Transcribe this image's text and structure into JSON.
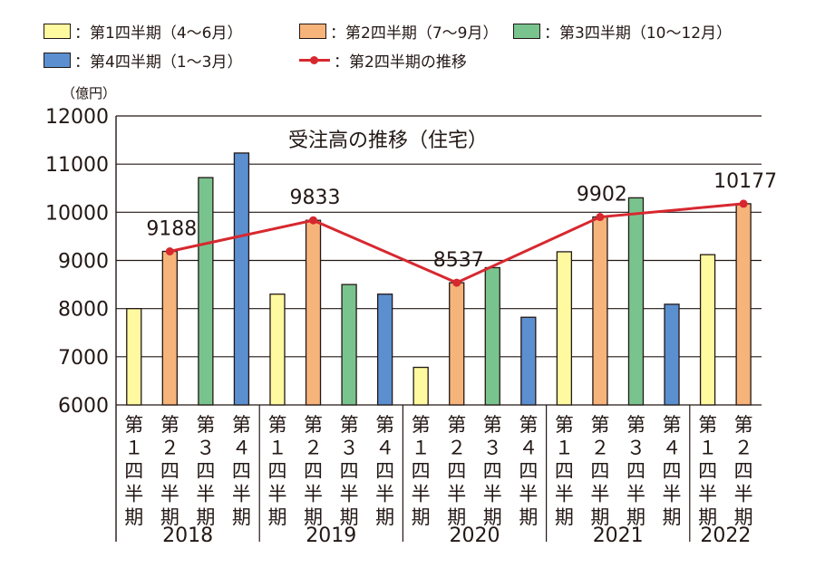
{
  "legend": [
    {
      "name": "：第1四半期（4〜6月）",
      "color": "#fffaa0",
      "kind": "bar"
    },
    {
      "name": "：第2四半期（7〜9月）",
      "color": "#f6b47b",
      "kind": "bar"
    },
    {
      "name": "：第3四半期（10〜12月）",
      "color": "#79c38f",
      "kind": "bar"
    },
    {
      "name": "：第4四半期（1〜3月）",
      "color": "#5b8fd0",
      "kind": "bar"
    },
    {
      "name": "：第2四半期の推移",
      "color": "#d7282f",
      "kind": "line"
    }
  ],
  "chart_data": {
    "type": "bar",
    "title": "受注高の推移（住宅）",
    "ylabel": "（億円）",
    "ylim": [
      6000,
      12000
    ],
    "yticks": [
      6000,
      7000,
      8000,
      9000,
      10000,
      11000,
      12000
    ],
    "grid": true,
    "legend_position": "top",
    "quarter_labels": [
      "第１四半期",
      "第２四半期",
      "第３四半期",
      "第４四半期"
    ],
    "years": [
      {
        "year": "2018",
        "values": [
          8000,
          9188,
          10720,
          11230
        ]
      },
      {
        "year": "2019",
        "values": [
          8300,
          9833,
          8500,
          8300
        ]
      },
      {
        "year": "2020",
        "values": [
          6780,
          8537,
          8850,
          7820
        ]
      },
      {
        "year": "2021",
        "values": [
          9180,
          9902,
          10300,
          8090
        ]
      },
      {
        "year": "2022",
        "values": [
          9120,
          10177
        ]
      }
    ],
    "line": {
      "name": "第2四半期の推移",
      "color": "#d7282f",
      "values": [
        9188,
        9833,
        8537,
        9902,
        10177
      ],
      "labels": [
        "9188",
        "9833",
        "8537",
        "9902",
        "10177"
      ]
    },
    "colors": [
      "#fffaa0",
      "#f6b47b",
      "#79c38f",
      "#5b8fd0"
    ]
  }
}
